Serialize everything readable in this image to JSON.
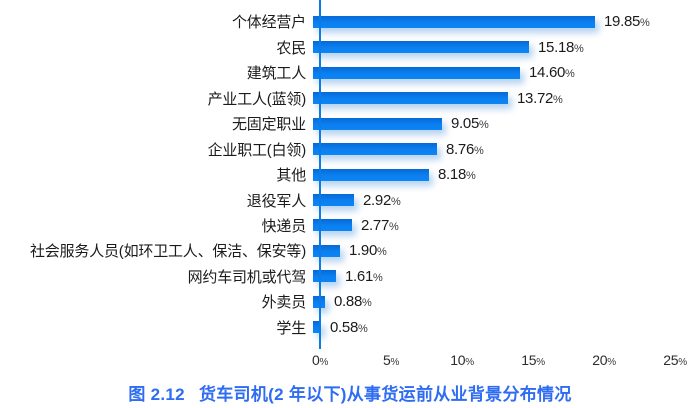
{
  "chart_data": {
    "type": "bar",
    "orientation": "horizontal",
    "title": "",
    "xlabel": "",
    "ylabel": "",
    "categories": [
      "个体经营户",
      "农民",
      "建筑工人",
      "产业工人(蓝领)",
      "无固定职业",
      "企业职工(白领)",
      "其他",
      "退役军人",
      "快递员",
      "社会服务人员(如环卫工人、保洁、保安等)",
      "网约车司机或代驾",
      "外卖员",
      "学生"
    ],
    "values": [
      19.85,
      15.18,
      14.6,
      13.72,
      9.05,
      8.76,
      8.18,
      2.92,
      2.77,
      1.9,
      1.61,
      0.88,
      0.58
    ],
    "value_labels": [
      "19.85",
      "15.18",
      "14.60",
      "13.72",
      "9.05",
      "8.76",
      "8.18",
      "2.92",
      "2.77",
      "1.90",
      "1.61",
      "0.88",
      "0.58"
    ],
    "unit": "%",
    "xlim": [
      0,
      25
    ],
    "x_ticks": [
      0,
      5,
      10,
      15,
      20,
      25
    ],
    "x_tick_labels": [
      "0",
      "5",
      "10",
      "15",
      "20",
      "25"
    ],
    "x_tick_suffix": "%",
    "grid": false,
    "legend": false,
    "bar_color": "#0b80f0",
    "axis_color": "#0b7ce6"
  },
  "caption": {
    "label": "图 2.12",
    "title": "货车司机(2 年以下)从事货运前从业背景分布情况",
    "color": "#2e6cf2"
  }
}
